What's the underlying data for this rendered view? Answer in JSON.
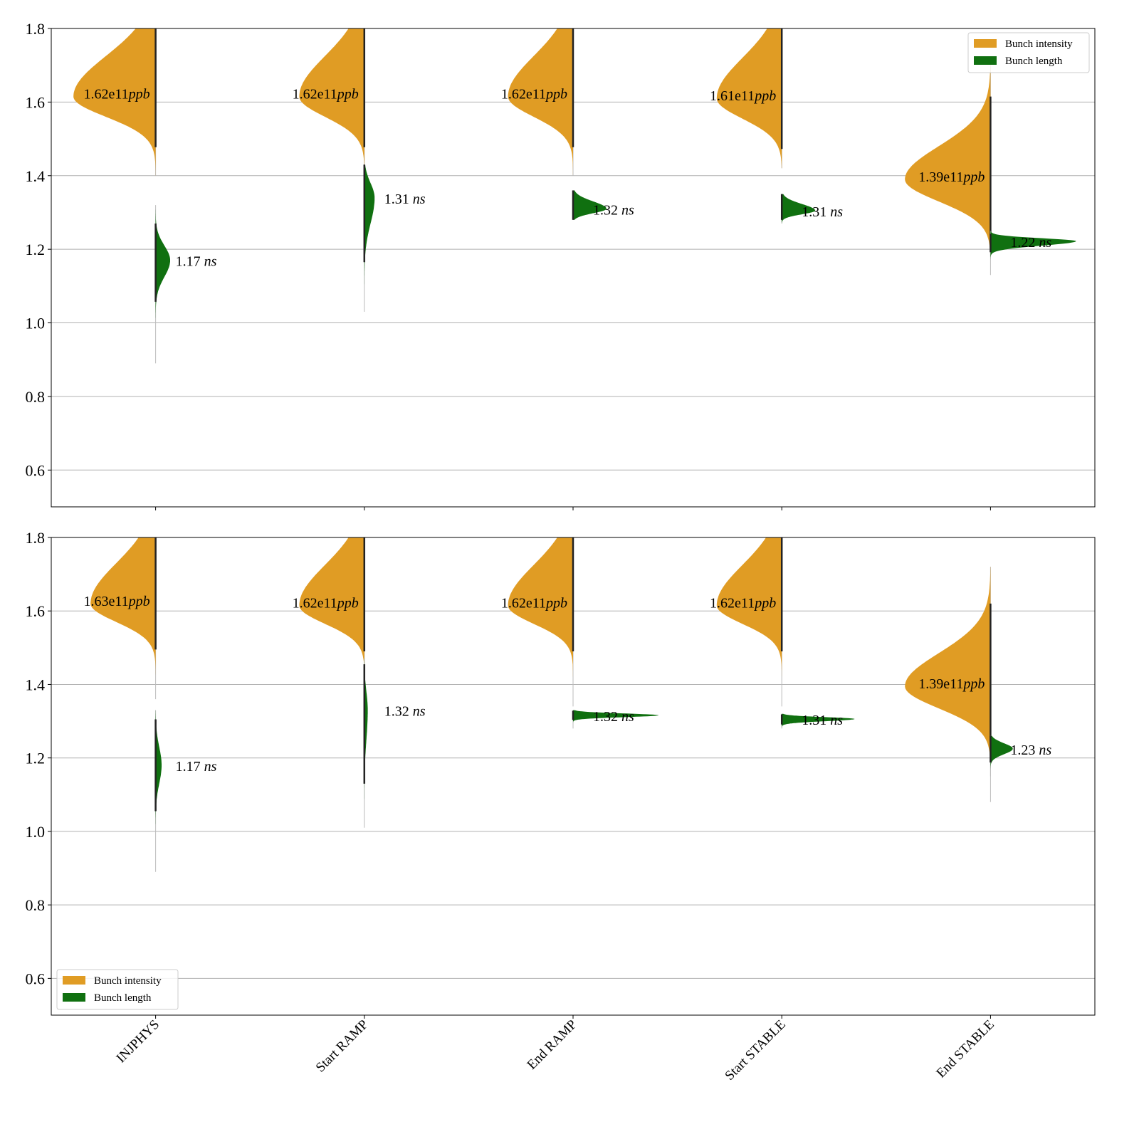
{
  "chart_data": {
    "type": "violin",
    "categories": [
      "INJPHYS",
      "Start RAMP",
      "End RAMP",
      "Start STABLE",
      "End STABLE"
    ],
    "colors": {
      "Bunch intensity": "#e09c24",
      "Bunch length": "#107010"
    },
    "panels": [
      {
        "ylim": [
          0.5,
          1.8
        ],
        "yticks": [
          0.6,
          0.8,
          1.0,
          1.2,
          1.4,
          1.6,
          1.8
        ],
        "grid": "horizontal",
        "legend": {
          "placement": "top-right",
          "entries": [
            "Bunch intensity",
            "Bunch length"
          ]
        },
        "series": [
          {
            "name": "Bunch intensity",
            "side": "left",
            "unit": "ppb",
            "violins": [
              {
                "label": "1.62e11",
                "peak": 1.615,
                "sd_low": 0.055,
                "sd_high": 0.11,
                "min": 1.4,
                "max": 1.8,
                "peak_density_rel": 0.96
              },
              {
                "label": "1.62e11",
                "peak": 1.615,
                "sd_low": 0.055,
                "sd_high": 0.11,
                "min": 1.42,
                "max": 1.8,
                "peak_density_rel": 0.76
              },
              {
                "label": "1.62e11",
                "peak": 1.615,
                "sd_low": 0.055,
                "sd_high": 0.11,
                "min": 1.4,
                "max": 1.8,
                "peak_density_rel": 0.76
              },
              {
                "label": "1.61e11",
                "peak": 1.61,
                "sd_low": 0.055,
                "sd_high": 0.11,
                "min": 1.42,
                "max": 1.8,
                "peak_density_rel": 0.76
              },
              {
                "label": "1.39e11",
                "peak": 1.39,
                "sd_low": 0.06,
                "sd_high": 0.09,
                "min": 1.18,
                "max": 1.7,
                "peak_density_rel": 1.0
              }
            ]
          },
          {
            "name": "Bunch length",
            "side": "right",
            "unit": "ns",
            "violins": [
              {
                "label": "1.17",
                "peak": 1.17,
                "sd_low": 0.045,
                "sd_high": 0.04,
                "min": 0.89,
                "max": 1.32,
                "peak_density_rel": 0.17
              },
              {
                "label": "1.31",
                "peak": 1.34,
                "sd_low": 0.07,
                "sd_high": 0.04,
                "min": 1.03,
                "max": 1.43,
                "peak_density_rel": 0.12
              },
              {
                "label": "1.32",
                "peak": 1.31,
                "sd_low": 0.012,
                "sd_high": 0.02,
                "min": 1.28,
                "max": 1.36,
                "peak_density_rel": 0.39
              },
              {
                "label": "1.31",
                "peak": 1.305,
                "sd_low": 0.01,
                "sd_high": 0.018,
                "min": 1.27,
                "max": 1.35,
                "peak_density_rel": 0.39
              },
              {
                "label": "1.22",
                "peak": 1.222,
                "sd_low": 0.012,
                "sd_high": 0.008,
                "min": 1.13,
                "max": 1.25,
                "peak_density_rel": 1.0
              }
            ]
          }
        ]
      },
      {
        "ylim": [
          0.5,
          1.8
        ],
        "yticks": [
          0.6,
          0.8,
          1.0,
          1.2,
          1.4,
          1.6,
          1.8
        ],
        "grid": "horizontal",
        "legend": {
          "placement": "lower-left",
          "entries": [
            "Bunch intensity",
            "Bunch length"
          ]
        },
        "series": [
          {
            "name": "Bunch intensity",
            "side": "left",
            "unit": "ppb",
            "violins": [
              {
                "label": "1.63e11",
                "peak": 1.62,
                "sd_low": 0.05,
                "sd_high": 0.11,
                "min": 1.36,
                "max": 1.8,
                "peak_density_rel": 0.76
              },
              {
                "label": "1.62e11",
                "peak": 1.615,
                "sd_low": 0.05,
                "sd_high": 0.11,
                "min": 1.4,
                "max": 1.8,
                "peak_density_rel": 0.76
              },
              {
                "label": "1.62e11",
                "peak": 1.615,
                "sd_low": 0.05,
                "sd_high": 0.11,
                "min": 1.34,
                "max": 1.8,
                "peak_density_rel": 0.76
              },
              {
                "label": "1.62e11",
                "peak": 1.615,
                "sd_low": 0.05,
                "sd_high": 0.11,
                "min": 1.34,
                "max": 1.8,
                "peak_density_rel": 0.76
              },
              {
                "label": "1.39e11",
                "peak": 1.395,
                "sd_low": 0.06,
                "sd_high": 0.09,
                "min": 1.08,
                "max": 1.72,
                "peak_density_rel": 1.0
              }
            ]
          },
          {
            "name": "Bunch length",
            "side": "right",
            "unit": "ns",
            "violins": [
              {
                "label": "1.17",
                "peak": 1.18,
                "sd_low": 0.05,
                "sd_high": 0.05,
                "min": 0.89,
                "max": 1.33,
                "peak_density_rel": 0.07
              },
              {
                "label": "1.32",
                "peak": 1.33,
                "sd_low": 0.08,
                "sd_high": 0.05,
                "min": 1.01,
                "max": 1.47,
                "peak_density_rel": 0.04
              },
              {
                "label": "1.32",
                "peak": 1.316,
                "sd_low": 0.005,
                "sd_high": 0.005,
                "min": 1.28,
                "max": 1.33,
                "peak_density_rel": 1.0
              },
              {
                "label": "1.31",
                "peak": 1.306,
                "sd_low": 0.006,
                "sd_high": 0.005,
                "min": 1.28,
                "max": 1.32,
                "peak_density_rel": 0.85
              },
              {
                "label": "1.23",
                "peak": 1.225,
                "sd_low": 0.015,
                "sd_high": 0.015,
                "min": 1.15,
                "max": 1.26,
                "peak_density_rel": 0.26
              }
            ]
          }
        ]
      }
    ]
  }
}
